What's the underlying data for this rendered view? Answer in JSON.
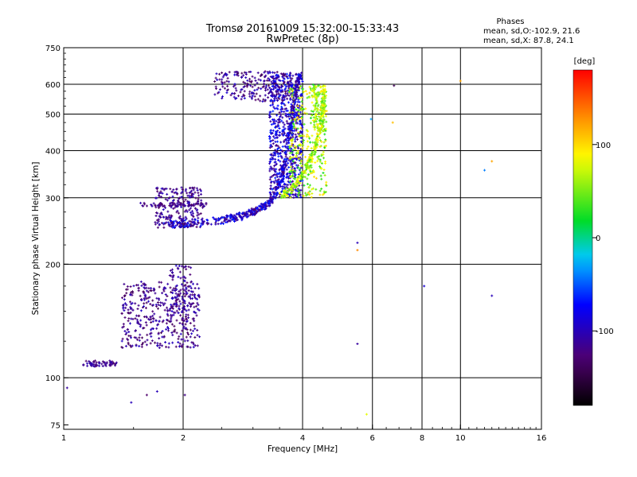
{
  "chart_data": {
    "type": "scatter",
    "title": "Tromsø 20161009 15:32:00-15:33:43",
    "subtitle": "RwPretec (8p)",
    "phase_block": {
      "heading": "Phases",
      "line_o": "mean, sd,O:-102.9, 21.6",
      "line_x": "mean, sd,X:  87.8, 24.1"
    },
    "xlabel": "Frequency [MHz]",
    "ylabel": "Stationary phase Virtual Height [km]",
    "x_scale": "log",
    "y_scale": "log",
    "xlim": [
      1,
      16
    ],
    "ylim": [
      73,
      750
    ],
    "x_ticks": [
      1,
      2,
      4,
      6,
      8,
      10,
      16
    ],
    "x_tick_labels": [
      "1",
      "2",
      "4",
      "6",
      "8",
      "10",
      "16"
    ],
    "y_ticks": [
      75,
      100,
      200,
      300,
      400,
      500,
      600,
      750
    ],
    "y_tick_labels": [
      "75",
      "100",
      "200",
      "300",
      "400",
      "500",
      "600",
      "750"
    ],
    "grid": true,
    "colorbar": {
      "label": "[deg]",
      "range": [
        -180,
        180
      ],
      "ticks": [
        100,
        0,
        -100
      ],
      "tick_labels": [
        "100",
        "0",
        "-100"
      ]
    },
    "isolated_points": [
      {
        "x": 1.02,
        "y": 94,
        "phase": -110
      },
      {
        "x": 1.48,
        "y": 86,
        "phase": -100
      },
      {
        "x": 1.62,
        "y": 90,
        "phase": -130
      },
      {
        "x": 1.72,
        "y": 92,
        "phase": -100
      },
      {
        "x": 2.02,
        "y": 90,
        "phase": -120
      },
      {
        "x": 5.5,
        "y": 123,
        "phase": -110
      },
      {
        "x": 5.5,
        "y": 218,
        "phase": 130
      },
      {
        "x": 5.5,
        "y": 228,
        "phase": -100
      },
      {
        "x": 5.8,
        "y": 80,
        "phase": 80
      },
      {
        "x": 5.95,
        "y": 485,
        "phase": -30
      },
      {
        "x": 6.75,
        "y": 475,
        "phase": 110
      },
      {
        "x": 6.8,
        "y": 595,
        "phase": -140
      },
      {
        "x": 8.1,
        "y": 175,
        "phase": -90
      },
      {
        "x": 10.0,
        "y": 612,
        "phase": 120
      },
      {
        "x": 11.5,
        "y": 355,
        "phase": -40
      },
      {
        "x": 12.0,
        "y": 375,
        "phase": 120
      },
      {
        "x": 12.0,
        "y": 165,
        "phase": -100
      }
    ],
    "clusters": [
      {
        "name": "E-region trace",
        "fmin": 1.12,
        "fmax": 1.36,
        "hmin": 107,
        "hmax": 111,
        "pmin": -135,
        "pmax": -100,
        "count": 60
      },
      {
        "name": "F1 lower blob",
        "fmin": 1.4,
        "fmax": 2.2,
        "hmin": 120,
        "hmax": 180,
        "pmin": -140,
        "pmax": -95,
        "count": 430
      },
      {
        "name": "F1 upper column",
        "fmin": 1.85,
        "fmax": 2.1,
        "hmin": 150,
        "hmax": 200,
        "pmin": -130,
        "pmax": -90,
        "count": 80
      },
      {
        "name": "spread at 2 MHz",
        "fmin": 1.7,
        "fmax": 2.25,
        "hmin": 250,
        "hmax": 320,
        "pmin": -135,
        "pmax": -95,
        "count": 230
      },
      {
        "name": "O-trace upper band",
        "fmin": 2.4,
        "fmax": 3.8,
        "hmin": 540,
        "hmax": 650,
        "pmin": -140,
        "pmax": -90,
        "count": 230
      },
      {
        "name": "O-trace steep part",
        "fmin": 3.3,
        "fmax": 4.0,
        "hmin": 300,
        "hmax": 640,
        "pmin": -130,
        "pmax": -60,
        "count": 650
      },
      {
        "name": "X-trace",
        "fmin": 3.7,
        "fmax": 4.6,
        "hmin": 300,
        "hmax": 600,
        "pmin": 20,
        "pmax": 105,
        "count": 330
      },
      {
        "name": "X-trace column",
        "fmin": 4.25,
        "fmax": 4.55,
        "hmin": 450,
        "hmax": 600,
        "pmin": 35,
        "pmax": 90,
        "count": 120
      }
    ],
    "curve_O": [
      [
        1.8,
        255
      ],
      [
        2.1,
        257
      ],
      [
        2.5,
        262
      ],
      [
        2.8,
        268
      ],
      [
        3.0,
        275
      ],
      [
        3.2,
        285
      ],
      [
        3.4,
        300
      ],
      [
        3.55,
        340
      ],
      [
        3.65,
        400
      ],
      [
        3.75,
        480
      ],
      [
        3.85,
        580
      ],
      [
        3.95,
        640
      ]
    ],
    "curve_X": [
      [
        3.55,
        305
      ],
      [
        3.8,
        320
      ],
      [
        4.0,
        345
      ],
      [
        4.2,
        380
      ],
      [
        4.4,
        440
      ],
      [
        4.5,
        520
      ],
      [
        4.55,
        590
      ]
    ],
    "spread_line": {
      "fmin": 1.55,
      "fmax": 2.3,
      "h": 288,
      "phase": -120
    }
  }
}
